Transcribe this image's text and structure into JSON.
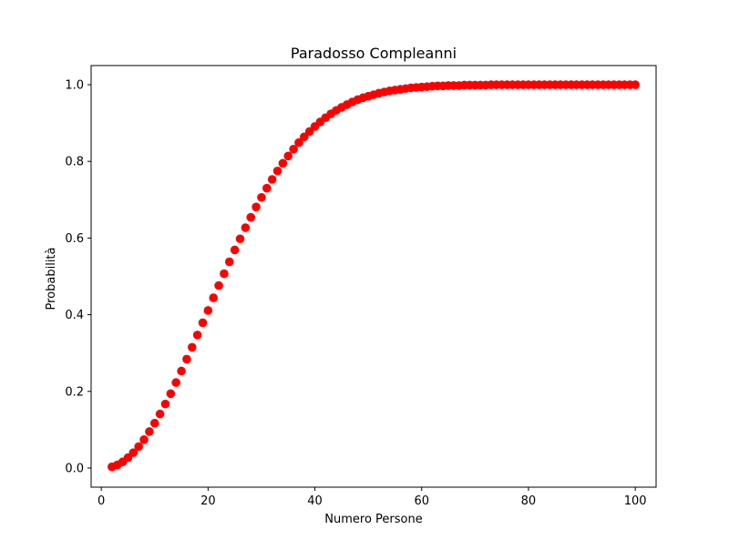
{
  "chart_data": {
    "type": "scatter",
    "title": "Paradosso Compleanni",
    "xlabel": "Numero Persone",
    "ylabel": "Probabilità",
    "xlim": [
      -1.9,
      103.9
    ],
    "ylim": [
      -0.05,
      1.05
    ],
    "xticks": [
      0,
      20,
      40,
      60,
      80,
      100
    ],
    "xtick_labels": [
      "0",
      "20",
      "40",
      "60",
      "80",
      "100"
    ],
    "yticks": [
      0.0,
      0.2,
      0.4,
      0.6,
      0.8,
      1.0
    ],
    "ytick_labels": [
      "0.0",
      "0.2",
      "0.4",
      "0.6",
      "0.8",
      "1.0"
    ],
    "grid": false,
    "marker_color": "#ff0000",
    "series": [
      {
        "x": [
          2,
          3,
          4,
          5,
          6,
          7,
          8,
          9,
          10,
          11,
          12,
          13,
          14,
          15,
          16,
          17,
          18,
          19,
          20,
          21,
          22,
          23,
          24,
          25,
          26,
          27,
          28,
          29,
          30,
          31,
          32,
          33,
          34,
          35,
          36,
          37,
          38,
          39,
          40,
          41,
          42,
          43,
          44,
          45,
          46,
          47,
          48,
          49,
          50,
          51,
          52,
          53,
          54,
          55,
          56,
          57,
          58,
          59,
          60,
          61,
          62,
          63,
          64,
          65,
          66,
          67,
          68,
          69,
          70,
          71,
          72,
          73,
          74,
          75,
          76,
          77,
          78,
          79,
          80,
          81,
          82,
          83,
          84,
          85,
          86,
          87,
          88,
          89,
          90,
          91,
          92,
          93,
          94,
          95,
          96,
          97,
          98,
          99,
          100
        ],
        "y": [
          0.003,
          0.008,
          0.016,
          0.027,
          0.04,
          0.056,
          0.074,
          0.095,
          0.117,
          0.141,
          0.167,
          0.194,
          0.223,
          0.253,
          0.284,
          0.315,
          0.347,
          0.379,
          0.411,
          0.444,
          0.476,
          0.507,
          0.538,
          0.569,
          0.598,
          0.627,
          0.654,
          0.681,
          0.706,
          0.73,
          0.753,
          0.775,
          0.795,
          0.814,
          0.832,
          0.849,
          0.864,
          0.878,
          0.891,
          0.903,
          0.914,
          0.924,
          0.933,
          0.941,
          0.948,
          0.955,
          0.961,
          0.966,
          0.97,
          0.974,
          0.978,
          0.981,
          0.984,
          0.986,
          0.988,
          0.99,
          0.992,
          0.993,
          0.994,
          0.995,
          0.996,
          0.997,
          0.997,
          0.998,
          0.998,
          0.998,
          0.999,
          0.999,
          0.999,
          0.999,
          0.999,
          1.0,
          1.0,
          1.0,
          1.0,
          1.0,
          1.0,
          1.0,
          1.0,
          1.0,
          1.0,
          1.0,
          1.0,
          1.0,
          1.0,
          1.0,
          1.0,
          1.0,
          1.0,
          1.0,
          1.0,
          1.0,
          1.0,
          1.0,
          1.0,
          1.0,
          1.0,
          1.0,
          1.0
        ]
      }
    ]
  }
}
